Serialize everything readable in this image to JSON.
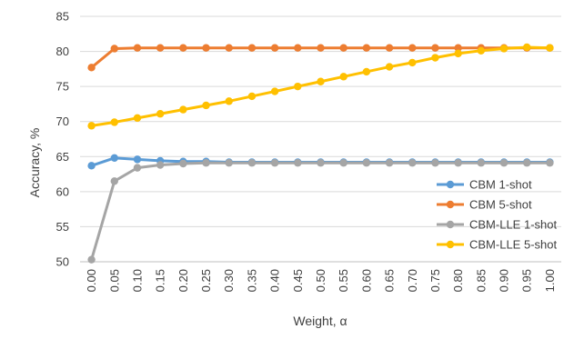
{
  "chart_data": {
    "type": "line",
    "title": "",
    "xlabel": "Weight, α",
    "ylabel": "Accuracy, %",
    "ylim": [
      50,
      85
    ],
    "yticks": [
      50,
      55,
      60,
      65,
      70,
      75,
      80,
      85
    ],
    "grid": "horizontal",
    "legend_position": "right",
    "x": [
      "0.00",
      "0.05",
      "0.10",
      "0.15",
      "0.20",
      "0.25",
      "0.30",
      "0.35",
      "0.40",
      "0.45",
      "0.50",
      "0.55",
      "0.60",
      "0.65",
      "0.70",
      "0.75",
      "0.80",
      "0.85",
      "0.90",
      "0.95",
      "1.00"
    ],
    "series": [
      {
        "name": "CBM 1-shot",
        "color": "#5B9BD5",
        "values": [
          63.7,
          64.8,
          64.6,
          64.4,
          64.3,
          64.3,
          64.2,
          64.2,
          64.2,
          64.2,
          64.2,
          64.2,
          64.2,
          64.2,
          64.2,
          64.2,
          64.2,
          64.2,
          64.2,
          64.2,
          64.2
        ]
      },
      {
        "name": "CBM 5-shot",
        "color": "#ED7D31",
        "values": [
          77.7,
          80.4,
          80.5,
          80.5,
          80.5,
          80.5,
          80.5,
          80.5,
          80.5,
          80.5,
          80.5,
          80.5,
          80.5,
          80.5,
          80.5,
          80.5,
          80.5,
          80.5,
          80.5,
          80.5,
          80.5
        ]
      },
      {
        "name": "CBM-LLE 1-shot",
        "color": "#A5A5A5",
        "values": [
          50.3,
          61.5,
          63.4,
          63.8,
          64.0,
          64.1,
          64.1,
          64.1,
          64.1,
          64.1,
          64.1,
          64.1,
          64.1,
          64.1,
          64.1,
          64.1,
          64.1,
          64.1,
          64.1,
          64.1,
          64.1
        ]
      },
      {
        "name": "CBM-LLE 5-shot",
        "color": "#FFC000",
        "values": [
          69.4,
          69.9,
          70.5,
          71.1,
          71.7,
          72.3,
          72.9,
          73.6,
          74.3,
          75.0,
          75.7,
          76.4,
          77.1,
          77.8,
          78.4,
          79.1,
          79.7,
          80.1,
          80.4,
          80.6,
          80.5
        ]
      }
    ]
  }
}
